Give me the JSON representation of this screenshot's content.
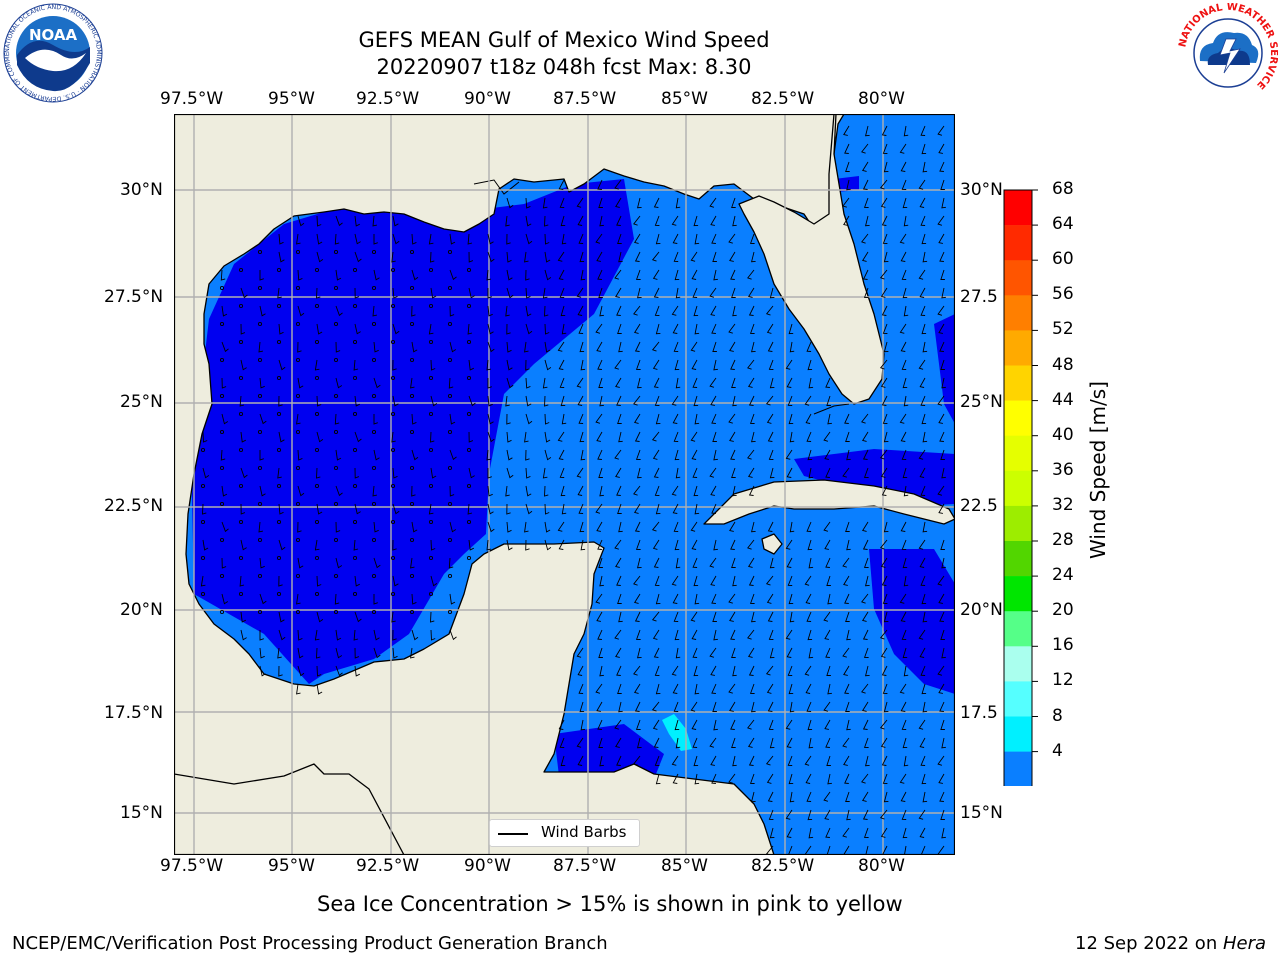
{
  "title": {
    "line1": "GEFS MEAN Gulf of Mexico Wind Speed",
    "line2": "20220907 t18z 048h fcst   Max: 8.30"
  },
  "lon_labels": [
    "97.5°W",
    "95°W",
    "92.5°W",
    "90°W",
    "87.5°W",
    "85°W",
    "82.5°W",
    "80°W"
  ],
  "lat_labels_left": [
    "30°N",
    "27.5°N",
    "25°N",
    "22.5°N",
    "20°N",
    "17.5°N",
    "15°N"
  ],
  "lat_labels_right": [
    "30°N",
    "27.5",
    "25°N",
    "22.5",
    "20°N",
    "17.5",
    "15°N"
  ],
  "legend": {
    "label": "Wind Barbs"
  },
  "colorbar": {
    "title": "Wind Speed [m/s]",
    "ticks": [
      "68",
      "64",
      "60",
      "56",
      "52",
      "48",
      "44",
      "40",
      "36",
      "32",
      "28",
      "24",
      "20",
      "16",
      "12",
      "8",
      "4"
    ],
    "colors": [
      "#ff0000",
      "#ff2a00",
      "#ff5500",
      "#ff7f00",
      "#ffaa00",
      "#ffd400",
      "#ffff00",
      "#e5ff00",
      "#ccff00",
      "#9ded00",
      "#52d600",
      "#00e600",
      "#55ff88",
      "#aaffee",
      "#55ffff",
      "#00f0ff",
      "#0a7fff"
    ],
    "extend_color": "#1010ff"
  },
  "note": "Sea Ice Concentration > 15% is shown in pink to yellow",
  "footer": {
    "left": "NCEP/EMC/Verification Post Processing Product Generation Branch",
    "right_date": "12 Sep 2022 on ",
    "right_machine": "Hera"
  },
  "logos": {
    "noaa": "NOAA",
    "noaa_ring": "NATIONAL OCEANIC AND ATMOSPHERIC ADMINISTRATION · U.S. DEPARTMENT OF COMMERCE",
    "nws_ring": "NATIONAL WEATHER SERVICE"
  },
  "colors": {
    "land": "#eeedde",
    "calm": "#0000f0",
    "light": "#0a7fff",
    "moderate": "#00f0ff",
    "grid": "#b0b0b0"
  }
}
